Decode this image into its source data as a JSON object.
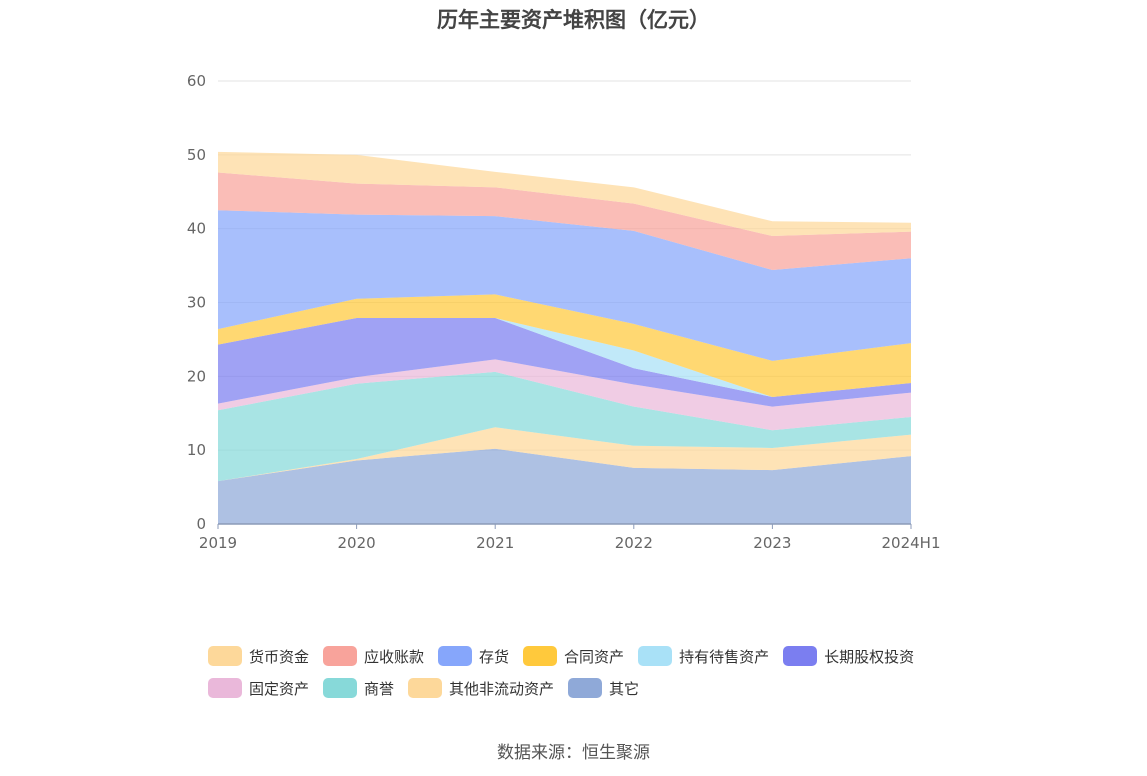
{
  "chart_data": {
    "type": "area",
    "stacked": true,
    "title": "历年主要资产堆积图（亿元）",
    "x": [
      "2019",
      "2020",
      "2021",
      "2022",
      "2023",
      "2024H1"
    ],
    "ylim": [
      0,
      60
    ],
    "yticks": [
      0,
      10,
      20,
      30,
      40,
      50,
      60
    ],
    "grid": true,
    "xlabel": "",
    "ylabel": "",
    "legend_position": "bottom",
    "series": [
      {
        "name": "其它",
        "color": "#8fa9d8",
        "values": [
          5.8,
          8.6,
          10.2,
          7.6,
          7.3,
          9.2
        ]
      },
      {
        "name": "其他非流动资产",
        "color": "#fdd89a",
        "values": [
          0.0,
          0.2,
          2.9,
          3.0,
          3.0,
          2.9
        ]
      },
      {
        "name": "商誉",
        "color": "#87d9d9",
        "values": [
          9.6,
          10.2,
          7.5,
          5.3,
          2.4,
          2.4
        ]
      },
      {
        "name": "固定资产",
        "color": "#eab8da",
        "values": [
          0.9,
          0.9,
          1.7,
          3.0,
          3.2,
          3.3
        ]
      },
      {
        "name": "长期股权投资",
        "color": "#7b7ef0",
        "values": [
          8.0,
          8.0,
          5.6,
          2.2,
          1.3,
          1.3
        ]
      },
      {
        "name": "持有待售资产",
        "color": "#a9e1f7",
        "values": [
          0.0,
          0.0,
          0.0,
          2.4,
          0.0,
          0.0
        ]
      },
      {
        "name": "合同资产",
        "color": "#ffc93c",
        "values": [
          2.1,
          2.6,
          3.2,
          3.6,
          4.9,
          5.4
        ]
      },
      {
        "name": "存货",
        "color": "#86a6fb",
        "values": [
          16.1,
          11.4,
          10.6,
          12.6,
          12.3,
          11.5
        ]
      },
      {
        "name": "应收账款",
        "color": "#f8a39b",
        "values": [
          5.1,
          4.2,
          3.9,
          3.7,
          4.6,
          3.6
        ]
      },
      {
        "name": "货币资金",
        "color": "#fdd89a",
        "values": [
          2.8,
          3.9,
          2.1,
          2.2,
          2.0,
          1.2
        ]
      }
    ],
    "legend_order": [
      "货币资金",
      "应收账款",
      "存货",
      "合同资产",
      "持有待售资产",
      "长期股权投资",
      "固定资产",
      "商誉",
      "其他非流动资产",
      "其它"
    ]
  },
  "source": "数据来源：恒生聚源"
}
